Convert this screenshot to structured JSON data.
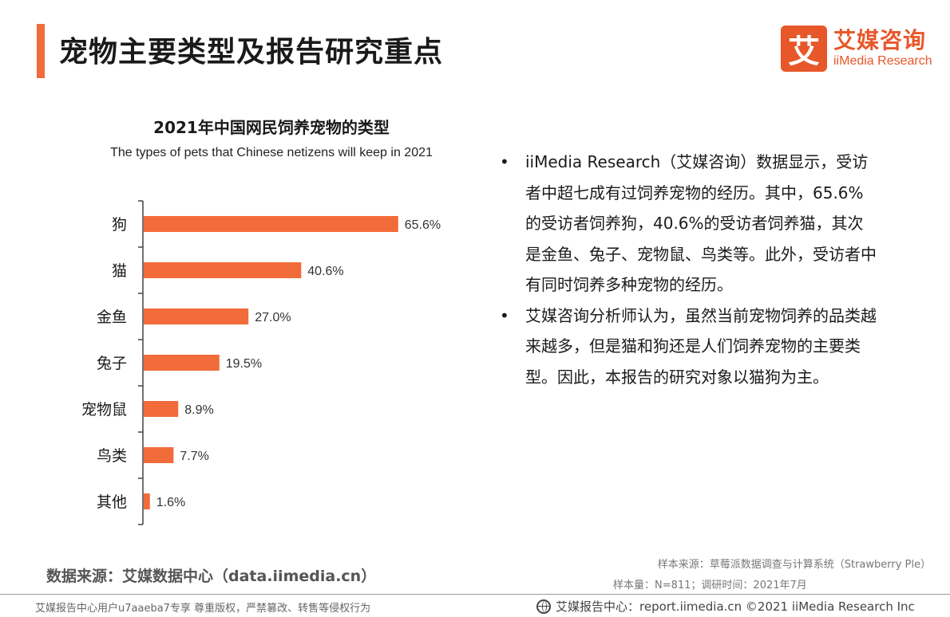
{
  "header": {
    "title": "宠物主要类型及报告研究重点"
  },
  "logo": {
    "mark": "艾",
    "name_cn": "艾媒咨询",
    "name_en": "iiMedia Research"
  },
  "chart_data": {
    "type": "bar",
    "orientation": "horizontal",
    "title": "2021年中国网民饲养宠物的类型",
    "subtitle": "The types of pets that Chinese netizens will keep in 2021",
    "categories": [
      "狗",
      "猫",
      "金鱼",
      "兔子",
      "宠物鼠",
      "鸟类",
      "其他"
    ],
    "values": [
      65.6,
      40.6,
      27.0,
      19.5,
      8.9,
      7.7,
      1.6
    ],
    "value_labels": [
      "65.6%",
      "40.6%",
      "27.0%",
      "19.5%",
      "8.9%",
      "7.7%",
      "1.6%"
    ],
    "xlim": [
      0,
      100
    ],
    "grid": false,
    "bar_color": "#f26b3a"
  },
  "bullets": [
    "iiMedia Research（艾媒咨询）数据显示，受访者中超七成有过饲养宠物的经历。其中，65.6%的受访者饲养狗，40.6%的受访者饲养猫，其次是金鱼、兔子、宠物鼠、鸟类等。此外，受访者中有同时饲养多种宠物的经历。",
    "艾媒咨询分析师认为，虽然当前宠物饲养的品类越来越多，但是猫和狗还是人们饲养宠物的主要类型。因此，本报告的研究对象以猫狗为主。"
  ],
  "bullet_mark": "•",
  "source": "数据来源：艾媒数据中心（data.iimedia.cn）",
  "sample_source": "样本来源：草莓派数据调查与计算系统（Strawberry Ple）",
  "sample_size": "样本量：N=811；调研时间：2021年7月",
  "footer": {
    "left": "艾媒报告中心用户u7aaeba7专享 尊重版权，严禁篡改、转售等侵权行为",
    "right": "艾媒报告中心：report.iimedia.cn ©2021  iiMedia Research  Inc"
  },
  "colors": {
    "accent": "#f26b3a",
    "brand": "#e8572a"
  }
}
